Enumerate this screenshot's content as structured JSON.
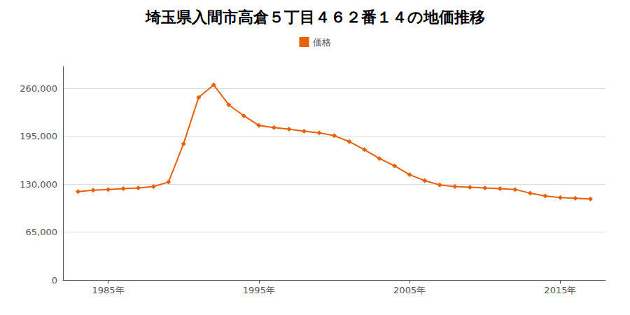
{
  "chart_data": {
    "type": "line",
    "title": "埼玉県入間市高倉５丁目４６２番１４の地価推移",
    "x": [
      1983,
      1984,
      1985,
      1986,
      1987,
      1988,
      1989,
      1990,
      1991,
      1992,
      1993,
      1994,
      1995,
      1996,
      1997,
      1998,
      1999,
      2000,
      2001,
      2002,
      2003,
      2004,
      2005,
      2006,
      2007,
      2008,
      2009,
      2010,
      2011,
      2012,
      2013,
      2014,
      2015,
      2016,
      2017
    ],
    "series": [
      {
        "name": "価格",
        "color": "#e8610a",
        "marker": "diamond",
        "values": [
          120000,
          122000,
          123000,
          124000,
          125000,
          127000,
          133000,
          185000,
          248000,
          265000,
          238000,
          223000,
          210000,
          207000,
          205000,
          202000,
          200000,
          196000,
          188000,
          177000,
          165000,
          155000,
          143000,
          135000,
          129000,
          127000,
          126000,
          125000,
          124000,
          123000,
          118000,
          114000,
          112000,
          111000,
          110000
        ]
      }
    ],
    "xlim": [
      1982,
      2018
    ],
    "xticks": [
      {
        "value": 1985,
        "label": "1985年"
      },
      {
        "value": 1995,
        "label": "1995年"
      },
      {
        "value": 2005,
        "label": "2005年"
      },
      {
        "value": 2015,
        "label": "2015年"
      }
    ],
    "ylim": [
      0,
      290000
    ],
    "yticks": [
      0,
      {
        "value": 65000,
        "label": "65,000"
      },
      {
        "value": 130000,
        "label": "130,000"
      },
      {
        "value": 195000,
        "label": "195,000"
      },
      {
        "value": 260000,
        "label": "260,000"
      }
    ],
    "grid": true,
    "legend": "top"
  }
}
